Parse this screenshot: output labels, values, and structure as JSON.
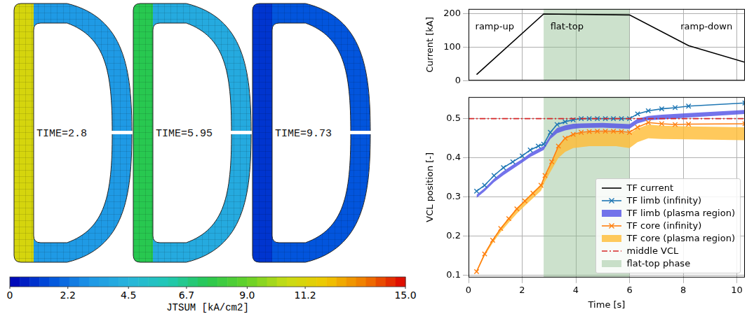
{
  "fem_figure": {
    "snapshots": [
      {
        "label": "TIME=2.8",
        "inner_leg": 11.0,
        "outer": 3.2
      },
      {
        "label": "TIME=5.95",
        "inner_leg": 7.5,
        "outer": 4.0
      },
      {
        "label": "TIME=9.73",
        "inner_leg": 1.0,
        "outer": 1.6
      }
    ],
    "colorbar": {
      "title": "JTSUM [kA/cm2]",
      "range": [
        0,
        15
      ],
      "ticks": [
        0,
        2.2,
        4.5,
        6.7,
        {
          "value": 9,
          "label": "9.0"
        },
        11.2,
        {
          "value": 15,
          "label": "15.0"
        }
      ]
    }
  },
  "chart_data": [
    {
      "type": "line",
      "ylabel": "Current [kA]",
      "xlim": [
        0,
        10.3
      ],
      "xticks": [
        0,
        2,
        4,
        6,
        8,
        10
      ],
      "ylim": [
        0,
        215
      ],
      "yticks": [
        0,
        100,
        200
      ],
      "grid": true,
      "tick_labels": "y",
      "series": [
        {
          "name": "TF current",
          "color": "#000000",
          "x": [
            0.3,
            2.8,
            6.0,
            8.2,
            10.3
          ],
          "values": [
            18,
            200,
            197,
            105,
            55
          ]
        }
      ],
      "shaded_regions": [
        {
          "x": [
            2.8,
            6.0
          ],
          "color": "#8fbc8f"
        }
      ],
      "annotations": [
        {
          "text": "ramp-up",
          "x": 0.25,
          "y": 160
        },
        {
          "text": "flat-top",
          "x": 3.05,
          "y": 160
        },
        {
          "text": "ramp-down",
          "x": 7.9,
          "y": 160
        }
      ]
    },
    {
      "type": "line",
      "xlabel": "Time [s]",
      "ylabel": "VCL position [-]",
      "xlim": [
        0,
        10.3
      ],
      "xticks": [
        0,
        2,
        4,
        6,
        8,
        10
      ],
      "ylim": [
        0.095,
        0.555
      ],
      "yticks": [
        0.1,
        0.2,
        0.3,
        0.4,
        0.5
      ],
      "grid": true,
      "legend": "lower right",
      "series": [
        {
          "name": "TF limb (infinity)",
          "color": "#1f77b4",
          "marker": "x",
          "x": [
            0.3,
            0.6,
            0.95,
            1.3,
            1.65,
            2.0,
            2.3,
            2.6,
            2.8,
            3.05,
            3.3,
            3.6,
            3.9,
            4.2,
            4.5,
            4.8,
            5.1,
            5.4,
            5.7,
            6.0,
            6.3,
            6.7,
            7.2,
            7.7,
            8.2,
            10.3
          ],
          "values": [
            0.315,
            0.33,
            0.355,
            0.375,
            0.39,
            0.405,
            0.42,
            0.43,
            0.435,
            0.465,
            0.485,
            0.492,
            0.497,
            0.5,
            0.5,
            0.5,
            0.5,
            0.5,
            0.5,
            0.5,
            0.512,
            0.52,
            0.525,
            0.528,
            0.532,
            0.54
          ]
        },
        {
          "name": "TF limb (plasma region)",
          "type": "band",
          "color": "#5050e6",
          "x": [
            0.3,
            0.6,
            0.95,
            1.3,
            1.65,
            2.0,
            2.3,
            2.6,
            2.8,
            3.05,
            3.3,
            3.6,
            3.9,
            4.2,
            5.0,
            6.0,
            6.3,
            6.7,
            7.2,
            8.2,
            10.3
          ],
          "lower": [
            0.298,
            0.315,
            0.338,
            0.356,
            0.372,
            0.388,
            0.402,
            0.413,
            0.42,
            0.448,
            0.463,
            0.47,
            0.474,
            0.476,
            0.477,
            0.474,
            0.488,
            0.496,
            0.498,
            0.503,
            0.512
          ],
          "upper": [
            0.306,
            0.323,
            0.347,
            0.366,
            0.382,
            0.397,
            0.412,
            0.423,
            0.43,
            0.458,
            0.476,
            0.483,
            0.487,
            0.488,
            0.489,
            0.486,
            0.5,
            0.507,
            0.51,
            0.514,
            0.522
          ]
        },
        {
          "name": "TF core (infinity)",
          "color": "#ff7f0e",
          "marker": "x",
          "x": [
            0.3,
            0.6,
            0.9,
            1.2,
            1.5,
            1.8,
            2.1,
            2.4,
            2.7,
            2.85,
            3.1,
            3.35,
            3.6,
            3.9,
            4.2,
            4.5,
            4.8,
            5.1,
            5.4,
            5.7,
            6.0,
            6.3,
            6.7,
            7.2,
            7.7,
            8.2,
            10.3
          ],
          "values": [
            0.11,
            0.155,
            0.19,
            0.22,
            0.245,
            0.27,
            0.29,
            0.31,
            0.33,
            0.355,
            0.39,
            0.43,
            0.45,
            0.46,
            0.465,
            0.467,
            0.468,
            0.468,
            0.468,
            0.467,
            0.465,
            0.478,
            0.49,
            0.487,
            0.485,
            0.486,
            0.487
          ]
        },
        {
          "name": "TF core (plasma region)",
          "type": "band",
          "color": "#ffbb33",
          "x": [
            0.3,
            0.6,
            0.9,
            1.2,
            1.5,
            1.8,
            2.1,
            2.4,
            2.7,
            2.85,
            3.1,
            3.35,
            3.6,
            3.9,
            4.5,
            5.5,
            6.0,
            6.3,
            6.7,
            7.2,
            8.2,
            10.3
          ],
          "lower": [
            0.108,
            0.15,
            0.183,
            0.211,
            0.235,
            0.258,
            0.278,
            0.297,
            0.316,
            0.34,
            0.37,
            0.4,
            0.415,
            0.425,
            0.43,
            0.43,
            0.425,
            0.44,
            0.45,
            0.448,
            0.447,
            0.445
          ],
          "upper": [
            0.113,
            0.157,
            0.192,
            0.222,
            0.248,
            0.272,
            0.293,
            0.313,
            0.332,
            0.356,
            0.39,
            0.43,
            0.45,
            0.46,
            0.465,
            0.466,
            0.462,
            0.475,
            0.485,
            0.482,
            0.48,
            0.478
          ]
        },
        {
          "name": "middle VCL",
          "color": "#d62728",
          "line_style": "dashdot",
          "x": [
            0,
            10.3
          ],
          "values": [
            0.5,
            0.5
          ]
        }
      ],
      "shaded_regions": [
        {
          "name": "flat-top phase",
          "x": [
            2.8,
            6.0
          ],
          "color": "#8fbc8f"
        }
      ]
    }
  ]
}
